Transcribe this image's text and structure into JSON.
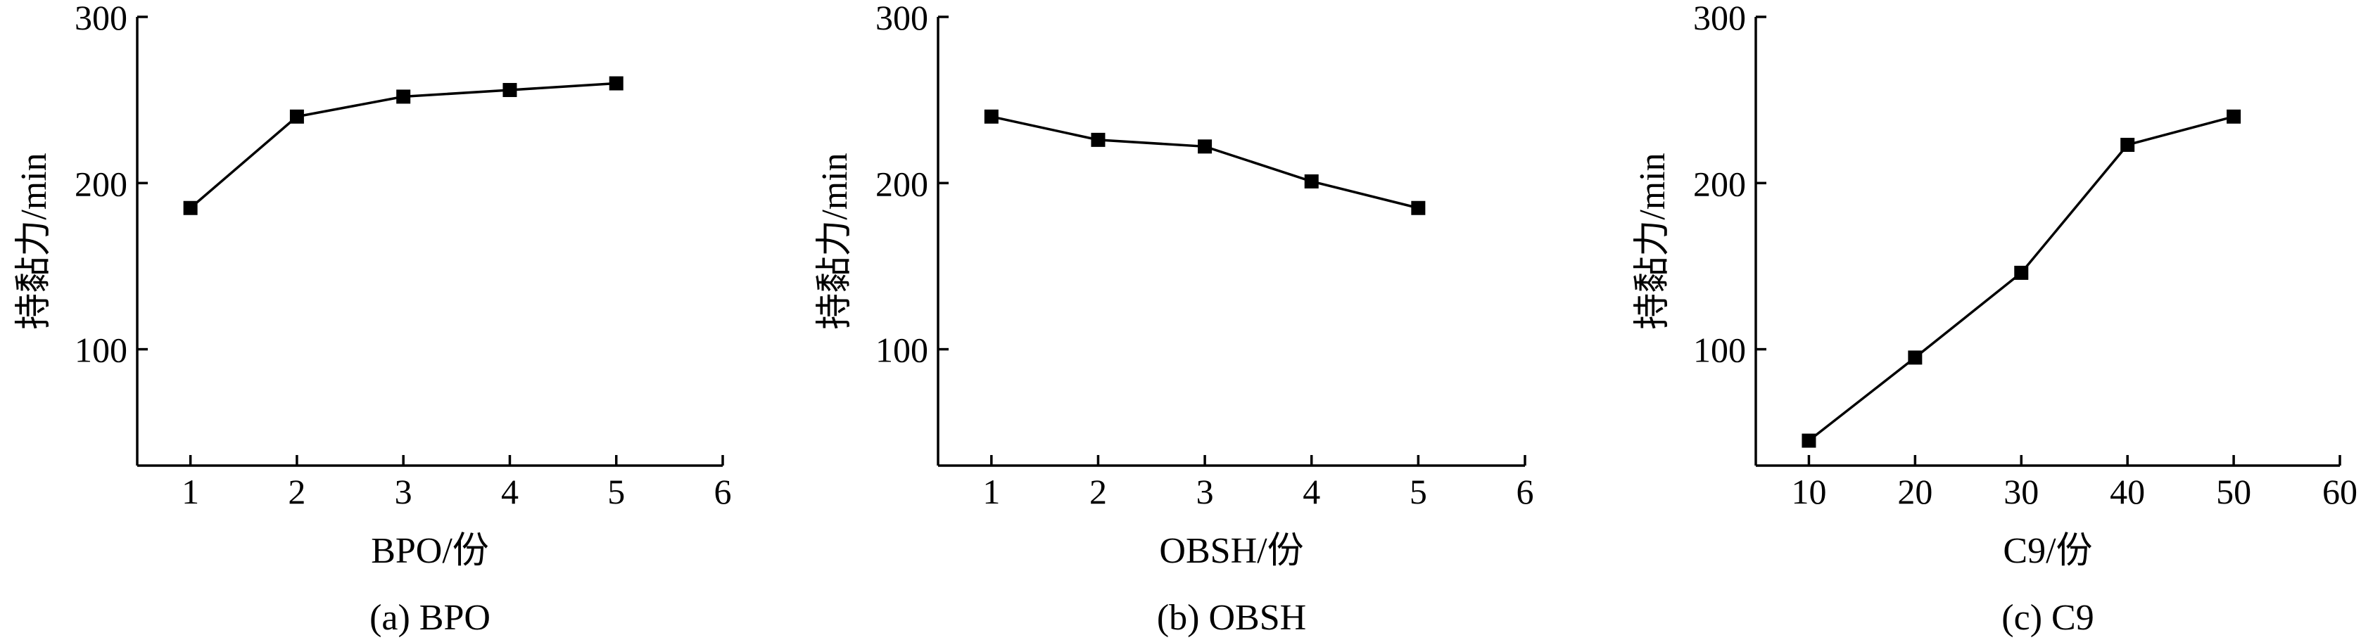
{
  "chart_data": [
    {
      "type": "line",
      "caption": "(a) BPO",
      "xlabel": "BPO/份",
      "ylabel": "持黏力/min",
      "xlim": [
        0.5,
        6
      ],
      "ylim": [
        30,
        300
      ],
      "xticks": [
        1,
        2,
        3,
        4,
        5,
        6
      ],
      "yticks": [
        100,
        200,
        300
      ],
      "x": [
        1,
        2,
        3,
        4,
        5
      ],
      "y": [
        185,
        240,
        252,
        256,
        260
      ],
      "marker": "square",
      "grid": false,
      "color": "#000000"
    },
    {
      "type": "line",
      "caption": "(b) OBSH",
      "xlabel": "OBSH/份",
      "ylabel": "持黏力/min",
      "xlim": [
        0.5,
        6
      ],
      "ylim": [
        30,
        300
      ],
      "xticks": [
        1,
        2,
        3,
        4,
        5,
        6
      ],
      "yticks": [
        100,
        200,
        300
      ],
      "x": [
        1,
        2,
        3,
        4,
        5
      ],
      "y": [
        240,
        226,
        222,
        201,
        185
      ],
      "marker": "square",
      "grid": false,
      "color": "#000000"
    },
    {
      "type": "line",
      "caption": "(c) C9",
      "xlabel": "C9/份",
      "ylabel": "持黏力/min",
      "xlim": [
        5,
        60
      ],
      "ylim": [
        30,
        300
      ],
      "xticks": [
        10,
        20,
        30,
        40,
        50,
        60
      ],
      "yticks": [
        100,
        200,
        300
      ],
      "x": [
        10,
        20,
        30,
        40,
        50
      ],
      "y": [
        45,
        95,
        146,
        223,
        240
      ],
      "marker": "square",
      "grid": false,
      "color": "#000000"
    }
  ]
}
